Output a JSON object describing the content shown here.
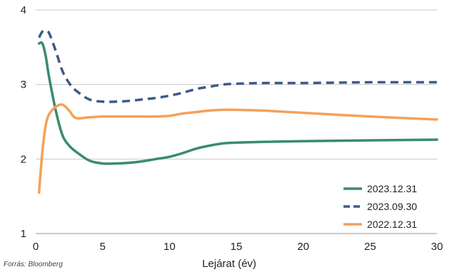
{
  "chart_data": {
    "type": "line",
    "xlabel": "Lejárat (év)",
    "ylabel": "",
    "xlim": [
      0,
      30
    ],
    "ylim": [
      1,
      4
    ],
    "x_ticks": [
      "0",
      "5",
      "10",
      "15",
      "20",
      "25",
      "30"
    ],
    "y_ticks": [
      "1",
      "2",
      "3",
      "4"
    ],
    "grid": "horizontal",
    "legend_position": "bottom-right",
    "source": "Forrás: Bloomberg",
    "series": [
      {
        "name": "2023.12.31",
        "color": "#3a8b6f",
        "dash": "solid",
        "points": [
          [
            0.25,
            3.55
          ],
          [
            0.5,
            3.55
          ],
          [
            0.75,
            3.38
          ],
          [
            1,
            3.1
          ],
          [
            1.5,
            2.65
          ],
          [
            2,
            2.32
          ],
          [
            2.5,
            2.18
          ],
          [
            3,
            2.1
          ],
          [
            4,
            1.98
          ],
          [
            5,
            1.94
          ],
          [
            6,
            1.94
          ],
          [
            7,
            1.95
          ],
          [
            8,
            1.97
          ],
          [
            9,
            2.0
          ],
          [
            10,
            2.03
          ],
          [
            11,
            2.08
          ],
          [
            12,
            2.14
          ],
          [
            13,
            2.18
          ],
          [
            14,
            2.21
          ],
          [
            15,
            2.22
          ],
          [
            17,
            2.23
          ],
          [
            20,
            2.24
          ],
          [
            25,
            2.25
          ],
          [
            30,
            2.26
          ]
        ]
      },
      {
        "name": "2023.09.30",
        "color": "#3d5a8c",
        "dash": "dashed",
        "points": [
          [
            0.25,
            3.63
          ],
          [
            0.5,
            3.71
          ],
          [
            0.75,
            3.72
          ],
          [
            1,
            3.69
          ],
          [
            1.5,
            3.45
          ],
          [
            2,
            3.18
          ],
          [
            2.5,
            3.02
          ],
          [
            3,
            2.92
          ],
          [
            4,
            2.8
          ],
          [
            5,
            2.77
          ],
          [
            6,
            2.77
          ],
          [
            7,
            2.78
          ],
          [
            8,
            2.8
          ],
          [
            9,
            2.82
          ],
          [
            10,
            2.85
          ],
          [
            11,
            2.89
          ],
          [
            12,
            2.94
          ],
          [
            13,
            2.97
          ],
          [
            14,
            3.0
          ],
          [
            15,
            3.01
          ],
          [
            17,
            3.02
          ],
          [
            20,
            3.02
          ],
          [
            25,
            3.03
          ],
          [
            30,
            3.03
          ]
        ]
      },
      {
        "name": "2022.12.31",
        "color": "#f5a05a",
        "dash": "solid",
        "points": [
          [
            0.25,
            1.55
          ],
          [
            0.5,
            2.1
          ],
          [
            0.75,
            2.45
          ],
          [
            1,
            2.6
          ],
          [
            1.5,
            2.7
          ],
          [
            2,
            2.73
          ],
          [
            2.5,
            2.65
          ],
          [
            3,
            2.55
          ],
          [
            4,
            2.56
          ],
          [
            5,
            2.57
          ],
          [
            6,
            2.57
          ],
          [
            7,
            2.57
          ],
          [
            8,
            2.57
          ],
          [
            9,
            2.57
          ],
          [
            10,
            2.58
          ],
          [
            11,
            2.61
          ],
          [
            12,
            2.63
          ],
          [
            13,
            2.65
          ],
          [
            14,
            2.66
          ],
          [
            15,
            2.66
          ],
          [
            17,
            2.65
          ],
          [
            20,
            2.62
          ],
          [
            25,
            2.57
          ],
          [
            30,
            2.53
          ]
        ]
      }
    ]
  }
}
